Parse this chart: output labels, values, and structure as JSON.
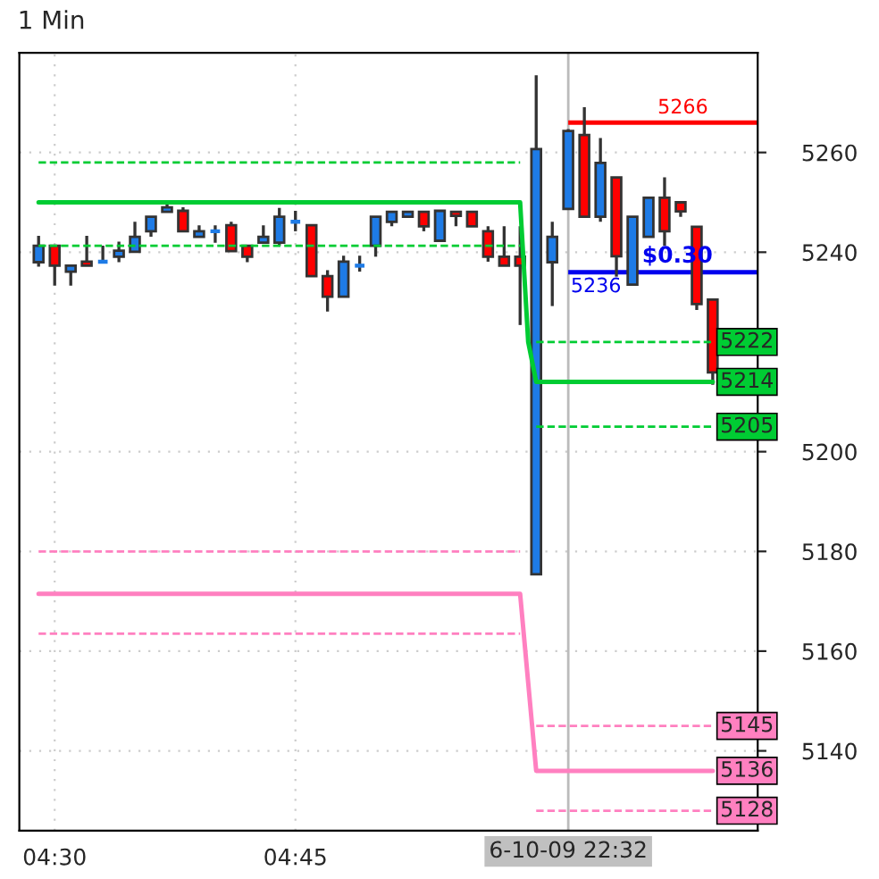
{
  "chart_data": {
    "type": "candlestick",
    "title": "1 Min",
    "x": [
      4.4833,
      4.5,
      4.5167,
      4.5333,
      4.55,
      4.5667,
      4.5833,
      4.6,
      4.6167,
      4.6333,
      4.65,
      4.6667,
      4.6833,
      4.7,
      4.7167,
      4.7333,
      4.75,
      4.7667,
      4.7833,
      4.8,
      4.8167,
      4.8333,
      4.85,
      4.8667,
      4.8833,
      4.9,
      4.9167,
      4.9333,
      4.95,
      4.9667,
      4.9833,
      5.0,
      5.0167,
      5.0333,
      5.05,
      5.0667,
      5.0833,
      5.1,
      5.1167,
      5.1333,
      5.15,
      5.1667,
      5.1833
    ],
    "ohlc": [
      [
        5238.0,
        5243.3,
        5237.1,
        5241.3
      ],
      [
        5241.3,
        5241.3,
        5233.3,
        5237.3
      ],
      [
        5236.1,
        5237.3,
        5233.3,
        5237.3
      ],
      [
        5238.1,
        5243.3,
        5237.3,
        5237.3
      ],
      [
        5238.1,
        5241.3,
        5238.1,
        5238.1
      ],
      [
        5239.1,
        5242.1,
        5238.0,
        5240.3
      ],
      [
        5240.1,
        5246.1,
        5240.1,
        5243.1
      ],
      [
        5244.2,
        5247.1,
        5243.1,
        5247.1
      ],
      [
        5248.1,
        5250.1,
        5248.1,
        5249.0
      ],
      [
        5248.3,
        5249.0,
        5244.2,
        5244.2
      ],
      [
        5243.1,
        5245.4,
        5243.1,
        5244.2
      ],
      [
        5244.2,
        5245.4,
        5241.9,
        5244.2
      ],
      [
        5245.4,
        5246.1,
        5240.2,
        5240.2
      ],
      [
        5241.3,
        5241.3,
        5238.0,
        5239.1
      ],
      [
        5241.9,
        5245.4,
        5241.9,
        5243.1
      ],
      [
        5241.9,
        5248.9,
        5241.3,
        5247.1
      ],
      [
        5246.1,
        5248.3,
        5244.2,
        5246.1
      ],
      [
        5245.4,
        5245.4,
        5235.2,
        5235.2
      ],
      [
        5235.2,
        5236.4,
        5228.1,
        5231.1
      ],
      [
        5231.1,
        5239.3,
        5231.1,
        5238.1
      ],
      [
        5237.3,
        5239.3,
        5236.1,
        5237.3
      ],
      [
        5241.3,
        5247.1,
        5239.1,
        5247.1
      ],
      [
        5246.1,
        5248.1,
        5245.2,
        5248.1
      ],
      [
        5247.1,
        5248.1,
        5247.1,
        5248.1
      ],
      [
        5248.1,
        5248.1,
        5244.2,
        5245.2
      ],
      [
        5242.3,
        5248.3,
        5242.3,
        5248.3
      ],
      [
        5248.1,
        5248.1,
        5245.2,
        5247.3
      ],
      [
        5248.1,
        5248.1,
        5245.2,
        5245.2
      ],
      [
        5244.2,
        5245.2,
        5238.1,
        5239.1
      ],
      [
        5239.1,
        5245.2,
        5237.3,
        5237.3
      ],
      [
        5239.1,
        5245.2,
        5225.4,
        5237.3
      ],
      [
        5175.4,
        5275.5,
        5175.4,
        5260.7
      ],
      [
        5238.0,
        5246.1,
        5229.2,
        5243.1
      ],
      [
        5248.7,
        5264.7,
        5248.7,
        5264.3
      ],
      [
        5263.5,
        5269.1,
        5247.1,
        5247.1
      ],
      [
        5247.1,
        5262.9,
        5246.1,
        5257.9
      ],
      [
        5255.0,
        5255.0,
        5235.1,
        5239.2
      ],
      [
        5233.5,
        5247.1,
        5233.5,
        5247.1
      ],
      [
        5243.1,
        5250.9,
        5243.1,
        5250.9
      ],
      [
        5250.9,
        5255.0,
        5241.3,
        5244.2
      ],
      [
        5250.0,
        5250.0,
        5247.1,
        5248.2
      ],
      [
        5245.1,
        5245.1,
        5228.4,
        5229.6
      ],
      [
        5230.5,
        5230.5,
        5213.4,
        5215.9
      ]
    ],
    "colors": [
      "#1e7be6",
      "#ff0000",
      "#1e7be6",
      "#ff0000",
      "#1e7be6",
      "#1e7be6",
      "#1e7be6",
      "#1e7be6",
      "#1e7be6",
      "#ff0000",
      "#1e7be6",
      "#1e7be6",
      "#ff0000",
      "#ff0000",
      "#1e7be6",
      "#1e7be6",
      "#1e7be6",
      "#ff0000",
      "#ff0000",
      "#1e7be6",
      "#1e7be6",
      "#1e7be6",
      "#1e7be6",
      "#1e7be6",
      "#ff0000",
      "#1e7be6",
      "#ff0000",
      "#ff0000",
      "#ff0000",
      "#ff0000",
      "#ff0000",
      "#1e7be6",
      "#1e7be6",
      "#1e7be6",
      "#ff0000",
      "#1e7be6",
      "#ff0000",
      "#1e7be6",
      "#1e7be6",
      "#ff0000",
      "#ff0000",
      "#ff0000",
      "#ff0000"
    ],
    "series": [
      {
        "type": "line",
        "color": "#00cc33",
        "line_style": "dashed",
        "x": [
          4.4833,
          4.9833,
          4.9917,
          5.0,
          5.1833
        ],
        "values": [
          5258,
          5258,
          null,
          5222,
          5222
        ],
        "value_labels": [
          null,
          null,
          null,
          null,
          "5222"
        ]
      },
      {
        "type": "line",
        "color": "#00cc33",
        "line_style": "solid",
        "x": [
          4.4833,
          4.9833,
          4.9917,
          5.0,
          5.1833
        ],
        "values": [
          5250,
          5250,
          5222,
          5214,
          5214
        ],
        "value_labels": [
          null,
          null,
          null,
          null,
          "5214"
        ]
      },
      {
        "type": "line",
        "color": "#00cc33",
        "line_style": "dashed",
        "x": [
          4.4833,
          4.9833,
          4.9917,
          5.0,
          5.1833
        ],
        "values": [
          5241.3,
          5241.3,
          null,
          5205,
          5205
        ],
        "value_labels": [
          null,
          null,
          null,
          null,
          "5205"
        ]
      },
      {
        "type": "line",
        "color": "#ff80c0",
        "line_style": "dashed",
        "x": [
          4.4833,
          4.9833,
          4.9917,
          5.0,
          5.1833
        ],
        "values": [
          5180,
          5180,
          null,
          5145,
          5145
        ],
        "value_labels": [
          null,
          null,
          null,
          null,
          "5145"
        ]
      },
      {
        "type": "line",
        "color": "#ff80c0",
        "line_style": "solid",
        "x": [
          4.4833,
          4.9833,
          5.0,
          5.1833
        ],
        "values": [
          5171.5,
          5171.5,
          5136,
          5136
        ],
        "value_labels": [
          null,
          null,
          null,
          "5136"
        ]
      },
      {
        "type": "line",
        "color": "#ff80c0",
        "line_style": "dashed",
        "x": [
          4.4833,
          4.9833,
          4.9917,
          5.0,
          5.1833
        ],
        "values": [
          5163.5,
          5163.5,
          null,
          5128,
          5128
        ],
        "value_labels": [
          null,
          null,
          null,
          null,
          "5128"
        ]
      }
    ],
    "ref_lines": [
      {
        "axis": "x",
        "value": 5.0333,
        "color": "#bbbbbb"
      },
      {
        "axis": "y",
        "value": 5266,
        "label": "5266",
        "color": "#ff0000"
      },
      {
        "axis": "y",
        "value": 5236,
        "label": "5236",
        "color": "#0000ee"
      }
    ],
    "annotations": [
      {
        "text": "$0.30",
        "x": 5.1833,
        "y": 5236
      },
      "6-10-09 22:32"
    ],
    "xlim": [
      4.4633,
      5.23
    ],
    "xticks": [
      {
        "value": 4.5,
        "label": "04:30"
      },
      {
        "value": 4.75,
        "label": "04:45"
      }
    ],
    "ylim": [
      5124,
      5280
    ],
    "yticks": [
      5140,
      5160,
      5180,
      5200,
      5240,
      5260
    ],
    "grid": true
  }
}
